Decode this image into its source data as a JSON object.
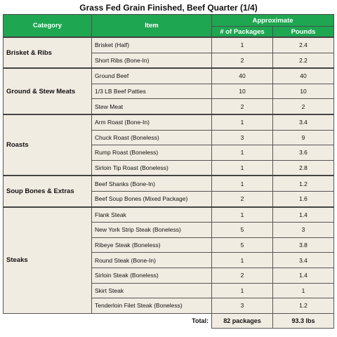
{
  "title": "Grass Fed Grain Finished, Beef Quarter (1/4)",
  "headers": {
    "category": "Category",
    "item": "Item",
    "approximate": "Approximate",
    "packages": "# of Packages",
    "pounds": "Pounds"
  },
  "groups": [
    {
      "category": "Brisket & Ribs",
      "rows": [
        {
          "item": "Brisket (Half)",
          "packages": "1",
          "pounds": "2.4"
        },
        {
          "item": "Short Ribs (Bone-In)",
          "packages": "2",
          "pounds": "2.2"
        }
      ]
    },
    {
      "category": "Ground & Stew Meats",
      "rows": [
        {
          "item": "Ground Beef",
          "packages": "40",
          "pounds": "40"
        },
        {
          "item": "1/3 LB Beef Patties",
          "packages": "10",
          "pounds": "10"
        },
        {
          "item": "Stew Meat",
          "packages": "2",
          "pounds": "2"
        }
      ]
    },
    {
      "category": "Roasts",
      "rows": [
        {
          "item": " Arm Roast (Bone-In)",
          "packages": "1",
          "pounds": "3.4"
        },
        {
          "item": "Chuck Roast (Boneless)",
          "packages": "3",
          "pounds": "9"
        },
        {
          "item": "Rump Roast (Boneless)",
          "packages": "1",
          "pounds": "3.6"
        },
        {
          "item": "Sirloin Tip Roast (Boneless)",
          "packages": "1",
          "pounds": "2.8"
        }
      ]
    },
    {
      "category": "Soup Bones & Extras",
      "rows": [
        {
          "item": "Beef Shanks (Bone-In)",
          "packages": "1",
          "pounds": "1.2"
        },
        {
          "item": "Beef Soup Bones (Mixed Package)",
          "packages": "2",
          "pounds": "1.6"
        }
      ]
    },
    {
      "category": "Steaks",
      "rows": [
        {
          "item": "Flank Steak",
          "packages": "1",
          "pounds": "1.4"
        },
        {
          "item": "New York Strip Steak (Boneless)",
          "packages": "5",
          "pounds": "3"
        },
        {
          "item": "Ribeye Steak (Boneless)",
          "packages": "5",
          "pounds": "3.8"
        },
        {
          "item": "Round Steak (Bone-In)",
          "packages": "1",
          "pounds": "3.4"
        },
        {
          "item": "Sirloin Steak (Boneless)",
          "packages": "2",
          "pounds": "1.4"
        },
        {
          "item": "Skirt Steak",
          "packages": "1",
          "pounds": "1"
        },
        {
          "item": "Tenderloin Filet Steak (Boneless)",
          "packages": "3",
          "pounds": "1.2"
        }
      ]
    }
  ],
  "total": {
    "label": "Total:",
    "packages": "82 packages",
    "pounds": "93.3 lbs"
  },
  "colors": {
    "header_green": "#1ea650",
    "cell_beige": "#f1ece2"
  }
}
